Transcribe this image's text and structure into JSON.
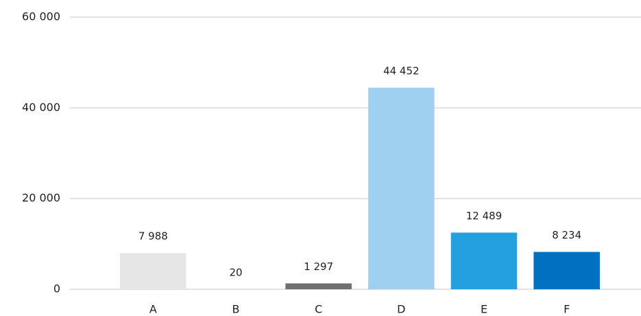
{
  "chart_data": {
    "type": "bar",
    "categories": [
      "A",
      "B",
      "C",
      "D",
      "E",
      "F"
    ],
    "values": [
      7988,
      20,
      1297,
      44452,
      12489,
      8234
    ],
    "value_labels": [
      "7 988",
      "20",
      "1 297",
      "44 452",
      "12 489",
      "8 234"
    ],
    "colors": [
      "#e6e6e6",
      "#c8c8c8",
      "#707070",
      "#9fd0f0",
      "#23a0e0",
      "#0070c0"
    ],
    "ylim": [
      0,
      60000
    ],
    "yticks": [
      0,
      {
        "value": 20000,
        "label": "20 000"
      },
      {
        "value": 40000,
        "label": "40 000"
      },
      {
        "value": 60000,
        "label": "60 000"
      }
    ],
    "grid": true
  }
}
